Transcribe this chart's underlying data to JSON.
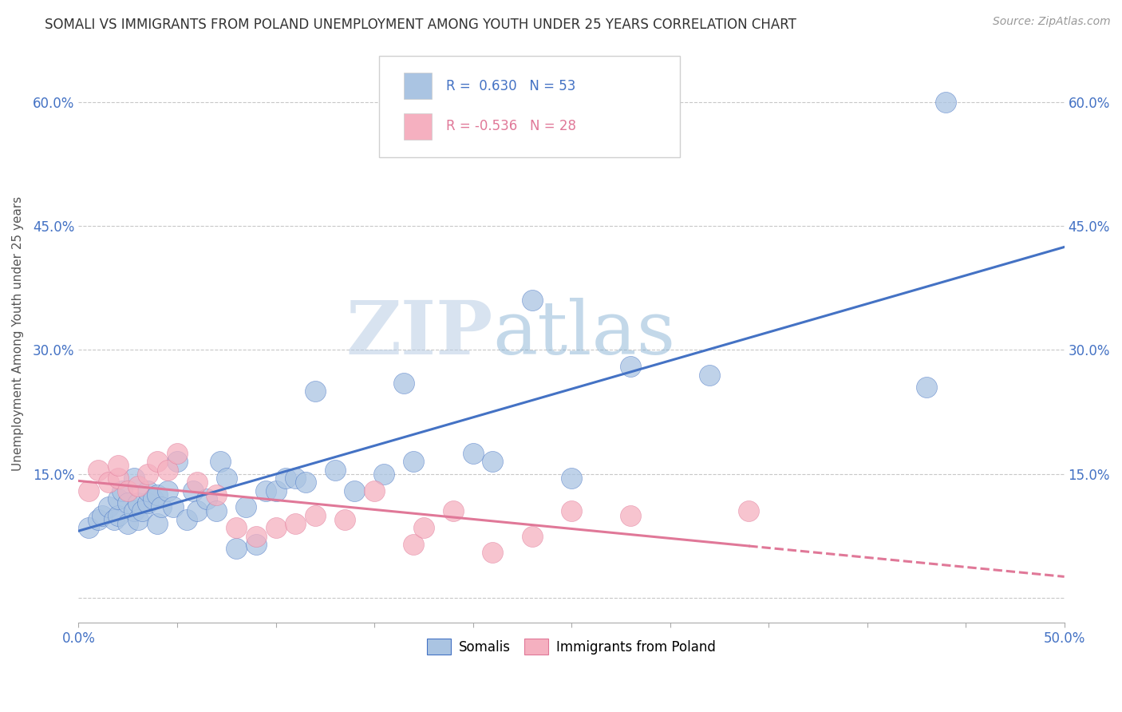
{
  "title": "SOMALI VS IMMIGRANTS FROM POLAND UNEMPLOYMENT AMONG YOUTH UNDER 25 YEARS CORRELATION CHART",
  "source": "Source: ZipAtlas.com",
  "ylabel": "Unemployment Among Youth under 25 years",
  "xlim": [
    0.0,
    0.5
  ],
  "ylim": [
    -0.03,
    0.67
  ],
  "xticks": [
    0.0,
    0.05,
    0.1,
    0.15,
    0.2,
    0.25,
    0.3,
    0.35,
    0.4,
    0.45,
    0.5
  ],
  "yticks": [
    0.0,
    0.15,
    0.3,
    0.45,
    0.6
  ],
  "somali_R": 0.63,
  "somali_N": 53,
  "poland_R": -0.536,
  "poland_N": 28,
  "somali_color": "#aac4e2",
  "poland_color": "#f5b0c0",
  "somali_line_color": "#4472c4",
  "poland_line_color": "#e07898",
  "watermark_zip": "ZIP",
  "watermark_atlas": "atlas",
  "somali_x": [
    0.005,
    0.01,
    0.012,
    0.015,
    0.018,
    0.02,
    0.02,
    0.022,
    0.025,
    0.025,
    0.028,
    0.028,
    0.03,
    0.03,
    0.032,
    0.035,
    0.035,
    0.038,
    0.04,
    0.04,
    0.042,
    0.045,
    0.048,
    0.05,
    0.055,
    0.058,
    0.06,
    0.065,
    0.07,
    0.072,
    0.075,
    0.08,
    0.085,
    0.09,
    0.095,
    0.1,
    0.105,
    0.11,
    0.115,
    0.12,
    0.13,
    0.14,
    0.155,
    0.165,
    0.17,
    0.2,
    0.21,
    0.23,
    0.25,
    0.28,
    0.32,
    0.43,
    0.44
  ],
  "somali_y": [
    0.085,
    0.095,
    0.1,
    0.11,
    0.095,
    0.1,
    0.12,
    0.13,
    0.09,
    0.115,
    0.105,
    0.145,
    0.095,
    0.115,
    0.105,
    0.115,
    0.13,
    0.12,
    0.09,
    0.125,
    0.11,
    0.13,
    0.11,
    0.165,
    0.095,
    0.13,
    0.105,
    0.12,
    0.105,
    0.165,
    0.145,
    0.06,
    0.11,
    0.065,
    0.13,
    0.13,
    0.145,
    0.145,
    0.14,
    0.25,
    0.155,
    0.13,
    0.15,
    0.26,
    0.165,
    0.175,
    0.165,
    0.36,
    0.145,
    0.28,
    0.27,
    0.255,
    0.6
  ],
  "poland_x": [
    0.005,
    0.01,
    0.015,
    0.02,
    0.02,
    0.025,
    0.03,
    0.035,
    0.04,
    0.045,
    0.05,
    0.06,
    0.07,
    0.08,
    0.09,
    0.1,
    0.11,
    0.12,
    0.135,
    0.15,
    0.17,
    0.175,
    0.19,
    0.21,
    0.23,
    0.25,
    0.28,
    0.34
  ],
  "poland_y": [
    0.13,
    0.155,
    0.14,
    0.145,
    0.16,
    0.13,
    0.135,
    0.15,
    0.165,
    0.155,
    0.175,
    0.14,
    0.125,
    0.085,
    0.075,
    0.085,
    0.09,
    0.1,
    0.095,
    0.13,
    0.065,
    0.085,
    0.105,
    0.055,
    0.075,
    0.105,
    0.1,
    0.105
  ]
}
